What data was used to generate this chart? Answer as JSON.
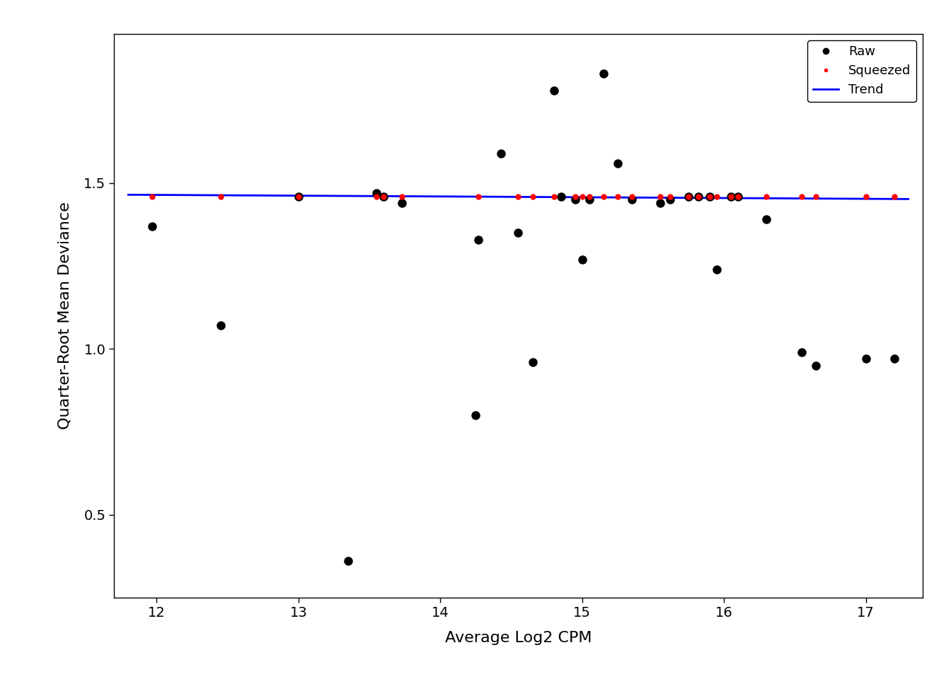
{
  "raw_x": [
    11.97,
    12.45,
    13.0,
    13.35,
    13.55,
    13.6,
    13.73,
    14.25,
    14.27,
    14.43,
    14.55,
    14.65,
    14.8,
    14.85,
    14.95,
    15.0,
    15.05,
    15.15,
    15.25,
    15.35,
    15.55,
    15.62,
    15.75,
    15.82,
    15.9,
    15.95,
    16.05,
    16.1,
    16.3,
    16.55,
    16.65,
    17.0,
    17.2
  ],
  "raw_y": [
    1.37,
    1.07,
    1.46,
    0.36,
    1.47,
    1.46,
    1.44,
    0.8,
    1.33,
    1.59,
    1.35,
    0.96,
    1.78,
    1.46,
    1.45,
    1.27,
    1.45,
    1.83,
    1.56,
    1.45,
    1.44,
    1.45,
    1.46,
    1.46,
    1.46,
    1.24,
    1.46,
    1.46,
    1.39,
    0.99,
    0.95,
    0.97,
    0.97
  ],
  "squeezed_x": [
    11.97,
    12.45,
    13.0,
    13.55,
    13.6,
    13.73,
    14.27,
    14.55,
    14.65,
    14.8,
    14.95,
    15.0,
    15.05,
    15.15,
    15.25,
    15.35,
    15.55,
    15.62,
    15.75,
    15.82,
    15.9,
    15.95,
    16.05,
    16.1,
    16.3,
    16.55,
    16.65,
    17.0,
    17.2
  ],
  "squeezed_y": [
    1.46,
    1.46,
    1.46,
    1.46,
    1.46,
    1.46,
    1.46,
    1.46,
    1.46,
    1.46,
    1.46,
    1.46,
    1.46,
    1.46,
    1.46,
    1.46,
    1.46,
    1.46,
    1.46,
    1.46,
    1.46,
    1.46,
    1.46,
    1.46,
    1.46,
    1.46,
    1.46,
    1.46,
    1.46
  ],
  "trend_x": [
    11.8,
    17.3
  ],
  "trend_y": [
    1.465,
    1.452
  ],
  "xlim": [
    11.7,
    17.4
  ],
  "ylim": [
    0.25,
    1.95
  ],
  "yticks": [
    0.5,
    1.0,
    1.5
  ],
  "xticks": [
    12,
    13,
    14,
    15,
    16,
    17
  ],
  "xlabel": "Average Log2 CPM",
  "ylabel": "Quarter-Root Mean Deviance",
  "title": "",
  "raw_color": "#000000",
  "squeezed_color": "#FF0000",
  "trend_color": "#0000FF",
  "raw_markersize": 8,
  "squeezed_markersize": 5,
  "trend_linewidth": 2.0,
  "legend_labels": [
    "Raw",
    "Squeezed",
    "Trend"
  ],
  "background_color": "#FFFFFF"
}
